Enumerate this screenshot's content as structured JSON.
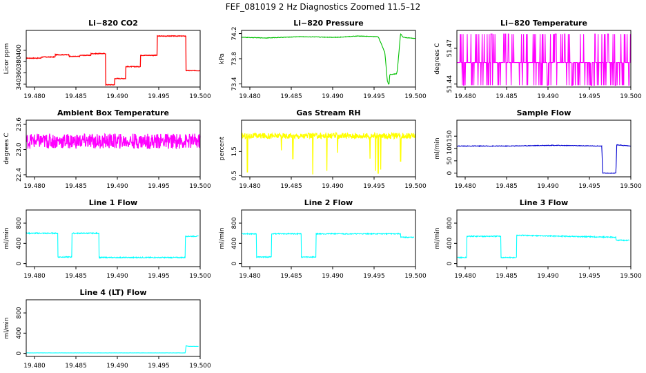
{
  "figure_title": "FEF_081019  2 Hz Diagnostics Zoomed 11.5–12",
  "chart_data": [
    {
      "type": "line",
      "title": "Li−820 CO2",
      "ylabel": "Licor ppm",
      "color": "#ff0000",
      "xlim": [
        19.479,
        19.5
      ],
      "ylim": [
        335,
        435
      ],
      "xticks": [
        "19.480",
        "19.485",
        "19.490",
        "19.495",
        "19.500"
      ],
      "yticks": [
        "340",
        "360",
        "380",
        "400"
      ],
      "noise": 0.6,
      "series": [
        {
          "x": [
            19.479,
            19.4808,
            19.4808,
            19.4825,
            19.4825,
            19.4842,
            19.4842,
            19.4855,
            19.4855,
            19.4868,
            19.4868,
            19.4886,
            19.4886,
            19.4897,
            19.4897,
            19.491,
            19.491,
            19.4928,
            19.4928,
            19.4948,
            19.4948,
            19.4983,
            19.4983,
            19.5
          ],
          "y": [
            386,
            386,
            388,
            388,
            392,
            392,
            389,
            389,
            391,
            391,
            394,
            394,
            339,
            339,
            350,
            350,
            371,
            371,
            391,
            391,
            425,
            425,
            364,
            364
          ]
        }
      ]
    },
    {
      "type": "line",
      "title": "Li−820 Pressure",
      "ylabel": "kPa",
      "color": "#00c000",
      "xlim": [
        19.479,
        19.5
      ],
      "ylim": [
        73.35,
        74.25
      ],
      "xticks": [
        "19.480",
        "19.485",
        "19.490",
        "19.495",
        "19.500"
      ],
      "yticks": [
        "73.4",
        "73.8",
        "74.2"
      ],
      "noise": 0.004,
      "series": [
        {
          "x": [
            19.479,
            19.482,
            19.486,
            19.4905,
            19.493,
            19.4955,
            19.4963,
            19.4966,
            19.4968,
            19.4969,
            19.4977,
            19.4978,
            19.498,
            19.4982,
            19.4985,
            19.5
          ],
          "y": [
            74.14,
            74.13,
            74.15,
            74.14,
            74.16,
            74.15,
            73.9,
            73.45,
            73.38,
            73.55,
            73.56,
            73.6,
            73.9,
            74.2,
            74.14,
            74.12
          ]
        }
      ]
    },
    {
      "type": "line",
      "title": "Li−820 Temperature",
      "ylabel": "degrees C",
      "color": "#ff00ff",
      "xlim": [
        19.479,
        19.5
      ],
      "ylim": [
        51.4375,
        51.485
      ],
      "xticks": [
        "19.480",
        "19.485",
        "19.490",
        "19.495",
        "19.500"
      ],
      "yticks": [
        "51.44",
        "51.47"
      ],
      "baseline": 51.458,
      "upper": 51.482,
      "lower": 51.439,
      "series": [
        {
          "name": "Li−820 Temperature",
          "x": [
            19.479,
            19.5
          ],
          "y": [
            51.458,
            51.458
          ]
        }
      ]
    },
    {
      "type": "line",
      "title": "Ambient Box Temperature",
      "ylabel": "degrees C",
      "color": "#ff00ff",
      "xlim": [
        19.479,
        19.5
      ],
      "ylim": [
        22.35,
        23.7
      ],
      "xticks": [
        "19.480",
        "19.485",
        "19.490",
        "19.495",
        "19.500"
      ],
      "yticks": [
        "22.4",
        "23.0",
        "23.6"
      ],
      "noise": 0.18,
      "series": [
        {
          "x": [
            19.479,
            19.5
          ],
          "y": [
            23.2,
            23.2
          ]
        }
      ]
    },
    {
      "type": "line",
      "title": "Gas Stream RH",
      "ylabel": "percent",
      "color": "#ffff00",
      "xlim": [
        19.479,
        19.5
      ],
      "ylim": [
        0.45,
        2.8
      ],
      "xticks": [
        "19.480",
        "19.485",
        "19.490",
        "19.495",
        "19.500"
      ],
      "yticks": [
        "0.5",
        "1.5"
      ],
      "noise": 0.12,
      "series": [
        {
          "x": [
            19.479,
            19.5
          ],
          "y": [
            2.15,
            2.15
          ]
        }
      ],
      "dips": [
        [
          19.4797,
          0.65
        ],
        [
          19.4838,
          1.55
        ],
        [
          19.4852,
          1.2
        ],
        [
          19.4876,
          0.55
        ],
        [
          19.4893,
          0.7
        ],
        [
          19.4906,
          1.45
        ],
        [
          19.4945,
          1.2
        ],
        [
          19.4952,
          0.7
        ],
        [
          19.4955,
          0.6
        ],
        [
          19.4958,
          0.75
        ],
        [
          19.4982,
          1.1
        ]
      ]
    },
    {
      "type": "line",
      "title": "Sample Flow",
      "ylabel": "ml/min",
      "color": "#0000d0",
      "xlim": [
        19.479,
        19.5
      ],
      "ylim": [
        -15,
        215
      ],
      "xticks": [
        "19.480",
        "19.485",
        "19.490",
        "19.495",
        "19.500"
      ],
      "yticks": [
        "0",
        "50",
        "100",
        "150"
      ],
      "noise": 1.2,
      "series": [
        {
          "x": [
            19.479,
            19.485,
            19.4905,
            19.4965,
            19.4966,
            19.4982,
            19.4983,
            19.5
          ],
          "y": [
            110,
            110,
            113,
            110,
            0,
            0,
            115,
            110
          ]
        }
      ]
    },
    {
      "type": "line",
      "title": "Line 1 Flow",
      "ylabel": "ml/min",
      "color": "#00ffff",
      "xlim": [
        19.479,
        19.5
      ],
      "ylim": [
        -60,
        1060
      ],
      "xticks": [
        "19.480",
        "19.485",
        "19.490",
        "19.495",
        "19.500"
      ],
      "yticks": [
        "0",
        "400",
        "800"
      ],
      "noise": 10,
      "series": [
        {
          "x": [
            19.479,
            19.4828,
            19.4828,
            19.4845,
            19.4845,
            19.4878,
            19.4878,
            19.4982,
            19.4982,
            19.4998
          ],
          "y": [
            600,
            600,
            130,
            130,
            600,
            600,
            120,
            120,
            540,
            540
          ]
        }
      ]
    },
    {
      "type": "line",
      "title": "Line 2 Flow",
      "ylabel": "ml/min",
      "color": "#00ffff",
      "xlim": [
        19.479,
        19.5
      ],
      "ylim": [
        -60,
        1060
      ],
      "xticks": [
        "19.480",
        "19.485",
        "19.490",
        "19.495",
        "19.500"
      ],
      "yticks": [
        "0",
        "400",
        "800"
      ],
      "noise": 10,
      "series": [
        {
          "x": [
            19.479,
            19.4808,
            19.4808,
            19.4826,
            19.4826,
            19.4862,
            19.4862,
            19.488,
            19.488,
            19.4982,
            19.4982,
            19.4998
          ],
          "y": [
            590,
            590,
            130,
            130,
            590,
            590,
            130,
            130,
            590,
            590,
            520,
            520
          ]
        }
      ]
    },
    {
      "type": "line",
      "title": "Line 3 Flow",
      "ylabel": "ml/min",
      "color": "#00ffff",
      "xlim": [
        19.479,
        19.5
      ],
      "ylim": [
        -60,
        1060
      ],
      "xticks": [
        "19.480",
        "19.485",
        "19.490",
        "19.495",
        "19.500"
      ],
      "yticks": [
        "0",
        "400",
        "800"
      ],
      "noise": 10,
      "series": [
        {
          "x": [
            19.479,
            19.4802,
            19.4802,
            19.4843,
            19.4843,
            19.4862,
            19.4862,
            19.4982,
            19.4982,
            19.4998
          ],
          "y": [
            120,
            120,
            540,
            540,
            120,
            120,
            560,
            520,
            460,
            460
          ]
        }
      ]
    },
    {
      "type": "line",
      "title": "Line 4 (LT) Flow",
      "ylabel": "ml/min",
      "color": "#00ffff",
      "xlim": [
        19.479,
        19.5
      ],
      "ylim": [
        -60,
        1060
      ],
      "xticks": [
        "19.480",
        "19.485",
        "19.490",
        "19.495",
        "19.500"
      ],
      "yticks": [
        "0",
        "400",
        "800"
      ],
      "noise": 1.5,
      "series": [
        {
          "x": [
            19.479,
            19.4982,
            19.4983,
            19.4986,
            19.4998
          ],
          "y": [
            10,
            10,
            150,
            140,
            140
          ]
        }
      ]
    }
  ]
}
